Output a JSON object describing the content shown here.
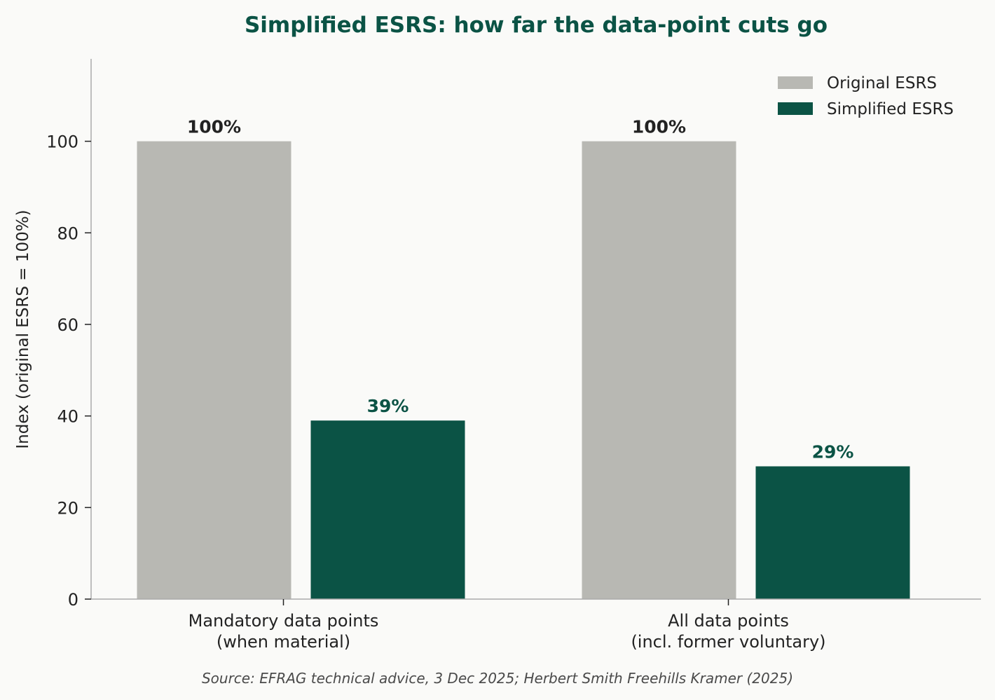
{
  "chart_data": {
    "type": "bar",
    "title": "Simplified ESRS: how far the data-point cuts go",
    "xlabel": "",
    "ylabel": "Index (original ESRS = 100%)",
    "categories": [
      [
        "Mandatory data points",
        "(when material)"
      ],
      [
        "All data points",
        "(incl. former voluntary)"
      ]
    ],
    "series": [
      {
        "name": "Original ESRS",
        "values": [
          100,
          100
        ],
        "labels": [
          "100%",
          "100%"
        ],
        "color": "#b8b8b3",
        "label_color": "#222222"
      },
      {
        "name": "Simplified ESRS",
        "values": [
          39,
          29
        ],
        "labels": [
          "39%",
          "29%"
        ],
        "color": "#0b5345",
        "label_color": "#0b5345"
      }
    ],
    "ylim": [
      0,
      118
    ],
    "yticks": [
      0,
      20,
      40,
      60,
      80,
      100
    ],
    "grid": false,
    "legend": "top-right",
    "title_color": "#0b5345",
    "source": "Source: EFRAG technical advice, 3 Dec 2025; Herbert Smith Freehills Kramer (2025)"
  }
}
